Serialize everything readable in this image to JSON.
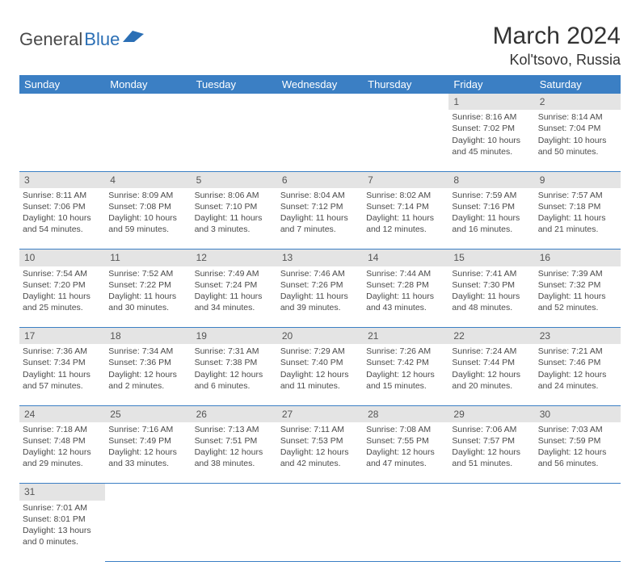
{
  "logo": {
    "general": "General",
    "blue": "Blue"
  },
  "title": "March 2024",
  "location": "Kol'tsovo, Russia",
  "colors": {
    "header_bg": "#3b7fc4",
    "header_text": "#ffffff",
    "daynum_bg": "#e4e4e4",
    "row_divider": "#3b7fc4",
    "body_text": "#4a4a4a",
    "logo_blue": "#2b6fb5"
  },
  "day_headers": [
    "Sunday",
    "Monday",
    "Tuesday",
    "Wednesday",
    "Thursday",
    "Friday",
    "Saturday"
  ],
  "weeks": [
    {
      "nums": [
        "",
        "",
        "",
        "",
        "",
        "1",
        "2"
      ],
      "cells": [
        null,
        null,
        null,
        null,
        null,
        {
          "sunrise": "8:16 AM",
          "sunset": "7:02 PM",
          "daylight": "10 hours and 45 minutes."
        },
        {
          "sunrise": "8:14 AM",
          "sunset": "7:04 PM",
          "daylight": "10 hours and 50 minutes."
        }
      ]
    },
    {
      "nums": [
        "3",
        "4",
        "5",
        "6",
        "7",
        "8",
        "9"
      ],
      "cells": [
        {
          "sunrise": "8:11 AM",
          "sunset": "7:06 PM",
          "daylight": "10 hours and 54 minutes."
        },
        {
          "sunrise": "8:09 AM",
          "sunset": "7:08 PM",
          "daylight": "10 hours and 59 minutes."
        },
        {
          "sunrise": "8:06 AM",
          "sunset": "7:10 PM",
          "daylight": "11 hours and 3 minutes."
        },
        {
          "sunrise": "8:04 AM",
          "sunset": "7:12 PM",
          "daylight": "11 hours and 7 minutes."
        },
        {
          "sunrise": "8:02 AM",
          "sunset": "7:14 PM",
          "daylight": "11 hours and 12 minutes."
        },
        {
          "sunrise": "7:59 AM",
          "sunset": "7:16 PM",
          "daylight": "11 hours and 16 minutes."
        },
        {
          "sunrise": "7:57 AM",
          "sunset": "7:18 PM",
          "daylight": "11 hours and 21 minutes."
        }
      ]
    },
    {
      "nums": [
        "10",
        "11",
        "12",
        "13",
        "14",
        "15",
        "16"
      ],
      "cells": [
        {
          "sunrise": "7:54 AM",
          "sunset": "7:20 PM",
          "daylight": "11 hours and 25 minutes."
        },
        {
          "sunrise": "7:52 AM",
          "sunset": "7:22 PM",
          "daylight": "11 hours and 30 minutes."
        },
        {
          "sunrise": "7:49 AM",
          "sunset": "7:24 PM",
          "daylight": "11 hours and 34 minutes."
        },
        {
          "sunrise": "7:46 AM",
          "sunset": "7:26 PM",
          "daylight": "11 hours and 39 minutes."
        },
        {
          "sunrise": "7:44 AM",
          "sunset": "7:28 PM",
          "daylight": "11 hours and 43 minutes."
        },
        {
          "sunrise": "7:41 AM",
          "sunset": "7:30 PM",
          "daylight": "11 hours and 48 minutes."
        },
        {
          "sunrise": "7:39 AM",
          "sunset": "7:32 PM",
          "daylight": "11 hours and 52 minutes."
        }
      ]
    },
    {
      "nums": [
        "17",
        "18",
        "19",
        "20",
        "21",
        "22",
        "23"
      ],
      "cells": [
        {
          "sunrise": "7:36 AM",
          "sunset": "7:34 PM",
          "daylight": "11 hours and 57 minutes."
        },
        {
          "sunrise": "7:34 AM",
          "sunset": "7:36 PM",
          "daylight": "12 hours and 2 minutes."
        },
        {
          "sunrise": "7:31 AM",
          "sunset": "7:38 PM",
          "daylight": "12 hours and 6 minutes."
        },
        {
          "sunrise": "7:29 AM",
          "sunset": "7:40 PM",
          "daylight": "12 hours and 11 minutes."
        },
        {
          "sunrise": "7:26 AM",
          "sunset": "7:42 PM",
          "daylight": "12 hours and 15 minutes."
        },
        {
          "sunrise": "7:24 AM",
          "sunset": "7:44 PM",
          "daylight": "12 hours and 20 minutes."
        },
        {
          "sunrise": "7:21 AM",
          "sunset": "7:46 PM",
          "daylight": "12 hours and 24 minutes."
        }
      ]
    },
    {
      "nums": [
        "24",
        "25",
        "26",
        "27",
        "28",
        "29",
        "30"
      ],
      "cells": [
        {
          "sunrise": "7:18 AM",
          "sunset": "7:48 PM",
          "daylight": "12 hours and 29 minutes."
        },
        {
          "sunrise": "7:16 AM",
          "sunset": "7:49 PM",
          "daylight": "12 hours and 33 minutes."
        },
        {
          "sunrise": "7:13 AM",
          "sunset": "7:51 PM",
          "daylight": "12 hours and 38 minutes."
        },
        {
          "sunrise": "7:11 AM",
          "sunset": "7:53 PM",
          "daylight": "12 hours and 42 minutes."
        },
        {
          "sunrise": "7:08 AM",
          "sunset": "7:55 PM",
          "daylight": "12 hours and 47 minutes."
        },
        {
          "sunrise": "7:06 AM",
          "sunset": "7:57 PM",
          "daylight": "12 hours and 51 minutes."
        },
        {
          "sunrise": "7:03 AM",
          "sunset": "7:59 PM",
          "daylight": "12 hours and 56 minutes."
        }
      ]
    },
    {
      "nums": [
        "31",
        "",
        "",
        "",
        "",
        "",
        ""
      ],
      "cells": [
        {
          "sunrise": "7:01 AM",
          "sunset": "8:01 PM",
          "daylight": "13 hours and 0 minutes."
        },
        null,
        null,
        null,
        null,
        null,
        null
      ]
    }
  ],
  "labels": {
    "sunrise": "Sunrise: ",
    "sunset": "Sunset: ",
    "daylight": "Daylight: "
  }
}
